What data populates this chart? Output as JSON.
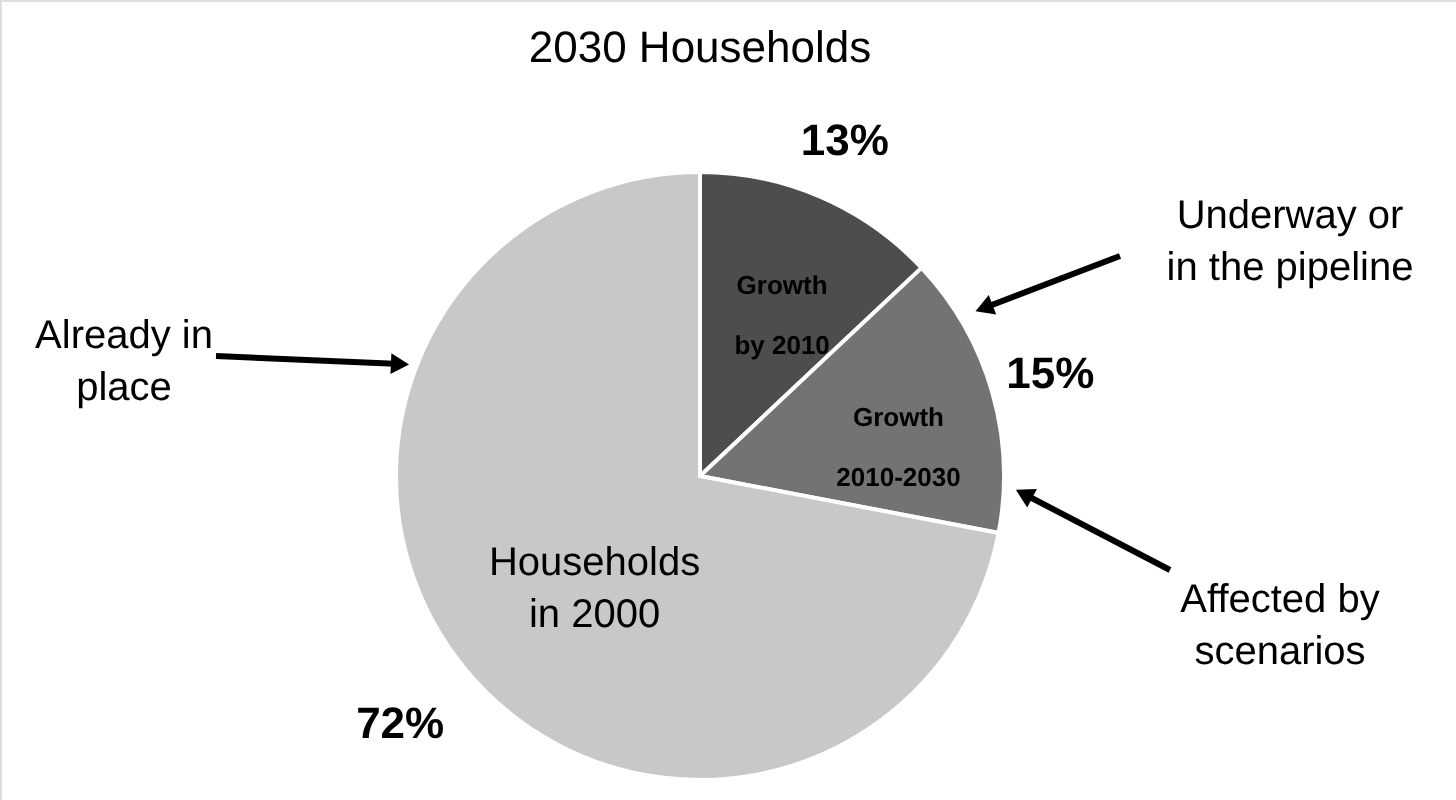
{
  "chart_data": {
    "type": "pie",
    "title": "2030 Households",
    "categories": [
      "Growth by 2010",
      "Growth 2010-2030",
      "Households in 2000"
    ],
    "values": [
      13,
      15,
      72
    ],
    "colors": [
      "#4d4d4d",
      "#737373",
      "#c8c8c8"
    ],
    "value_labels": [
      "13%",
      "15%",
      "72%"
    ],
    "annotations": [
      "Already in place",
      "Underway or in the pipeline",
      "Affected by scenarios"
    ]
  }
}
